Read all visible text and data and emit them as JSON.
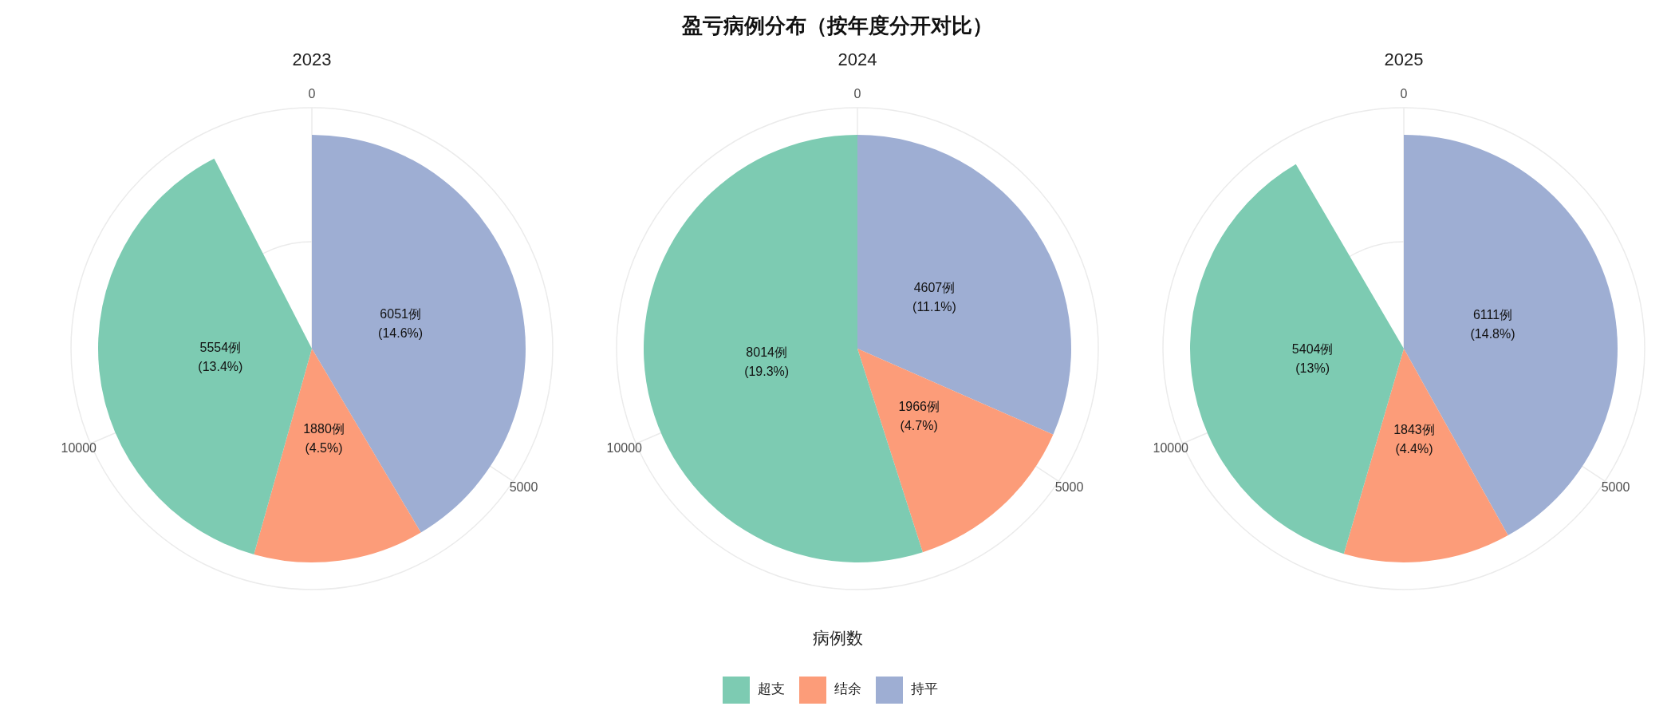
{
  "chart_data": [
    {
      "type": "pie",
      "title": "2023",
      "annotations": [
        "盈亏病例分布（按年度分开对比）",
        "0",
        "5000",
        "10000"
      ],
      "legend": "bottom",
      "legend_title": "病例数",
      "categories": [
        "超支",
        "结余",
        "持平"
      ],
      "values": [
        5554,
        1880,
        6051
      ],
      "colors": [
        "#7dcbb2",
        "#fc9c79",
        "#9eaed3"
      ],
      "value_labels": [
        "5554例\n(13.4%)",
        "1880例\n(4.5%)",
        "6051例\n(14.6%)"
      ],
      "grid": true
    },
    {
      "type": "pie",
      "title": "2024",
      "annotations": [
        "0",
        "5000",
        "10000"
      ],
      "categories": [
        null,
        null,
        null
      ],
      "values": [
        8014,
        1966,
        4607
      ],
      "colors": [
        "#7dcbb2",
        "#fc9c79",
        "#9eaed3"
      ],
      "value_labels": [
        "8014例\n(19.3%)",
        "1966例\n(4.7%)",
        "4607例\n(11.1%)"
      ],
      "grid": true
    },
    {
      "type": "pie",
      "title": "2025",
      "annotations": [
        "0",
        "5000",
        "10000"
      ],
      "categories": [
        null,
        null,
        null
      ],
      "values": [
        5404,
        1843,
        6111
      ],
      "colors": [
        "#7dcbb2",
        "#fc9c79",
        "#9eaed3"
      ],
      "value_labels": [
        "5404例\n(13%)",
        "1843例\n(4.4%)",
        "6111例\n(14.8%)"
      ],
      "grid": true
    }
  ]
}
